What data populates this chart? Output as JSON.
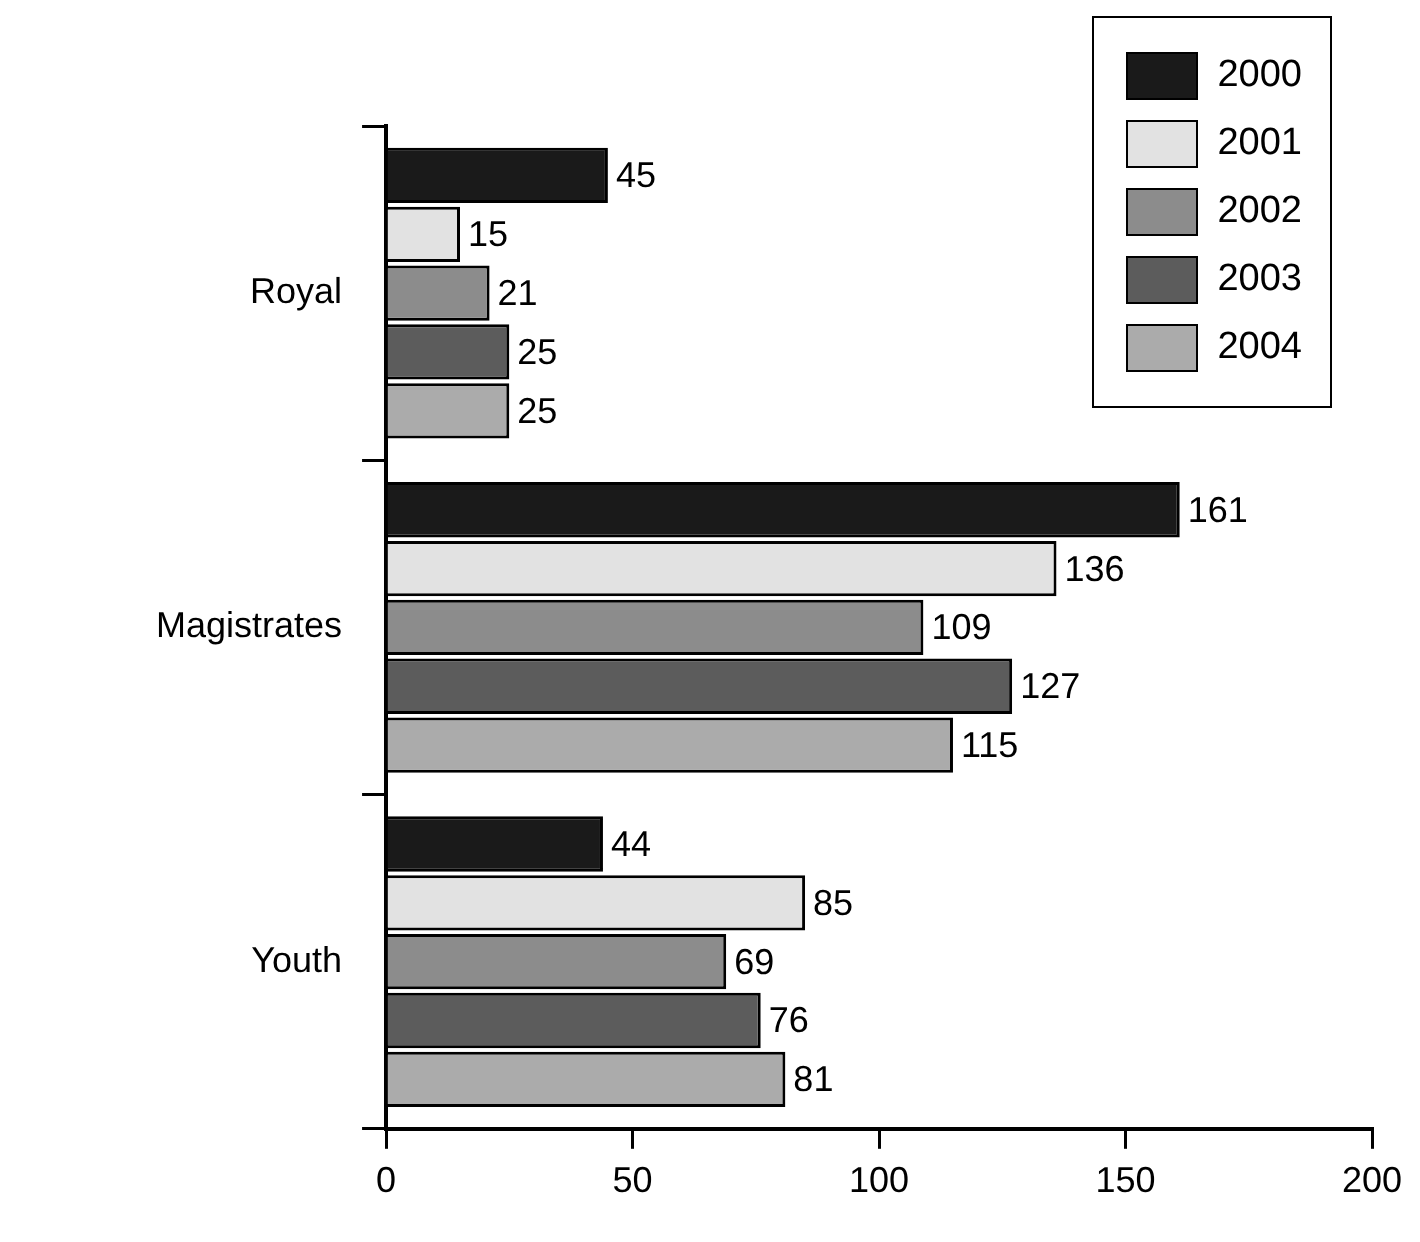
{
  "chart_data": {
    "type": "bar",
    "orientation": "horizontal",
    "categories": [
      "Royal",
      "Magistrates",
      "Youth"
    ],
    "series": [
      {
        "name": "2000",
        "color": "#1a1a1a",
        "values": [
          45,
          161,
          44
        ]
      },
      {
        "name": "2001",
        "color": "#e2e2e2",
        "values": [
          15,
          136,
          85
        ]
      },
      {
        "name": "2002",
        "color": "#8c8c8c",
        "values": [
          21,
          109,
          69
        ]
      },
      {
        "name": "2003",
        "color": "#5c5c5c",
        "values": [
          25,
          127,
          76
        ]
      },
      {
        "name": "2004",
        "color": "#ababab",
        "values": [
          25,
          115,
          81
        ]
      }
    ],
    "xlim": [
      0,
      200
    ],
    "xticks": [
      0,
      50,
      100,
      150,
      200
    ],
    "grid": false,
    "legend": "top right",
    "data_labels": true
  }
}
